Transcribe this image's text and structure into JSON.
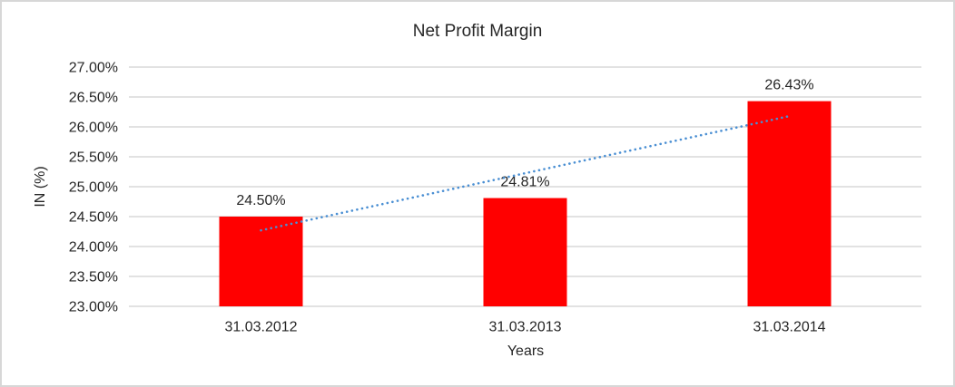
{
  "chart_data": {
    "type": "bar",
    "title": "Net Profit Margin",
    "xlabel": "Years",
    "ylabel": "IN (%)",
    "categories": [
      "31.03.2012",
      "31.03.2013",
      "31.03.2014"
    ],
    "values": [
      24.5,
      24.81,
      26.43
    ],
    "value_labels": [
      "24.50%",
      "24.81%",
      "26.43%"
    ],
    "ylim": [
      23,
      27
    ],
    "ytick_step": 0.5,
    "ytick_labels": [
      "23.00%",
      "23.50%",
      "24.00%",
      "24.50%",
      "25.00%",
      "25.50%",
      "26.00%",
      "26.50%",
      "27.00%"
    ],
    "grid": true,
    "legend": "none",
    "colors": {
      "bar": "#ff0000",
      "gridline": "#d9d9d9",
      "frame_border": "#d7d7d7",
      "text": "#262626",
      "trendline": "#4a8fd3"
    },
    "trendline": {
      "type": "linear-dotted",
      "start_category_index": 0,
      "end_category_index": 2,
      "start_value": 24.27,
      "end_value": 26.18
    }
  }
}
